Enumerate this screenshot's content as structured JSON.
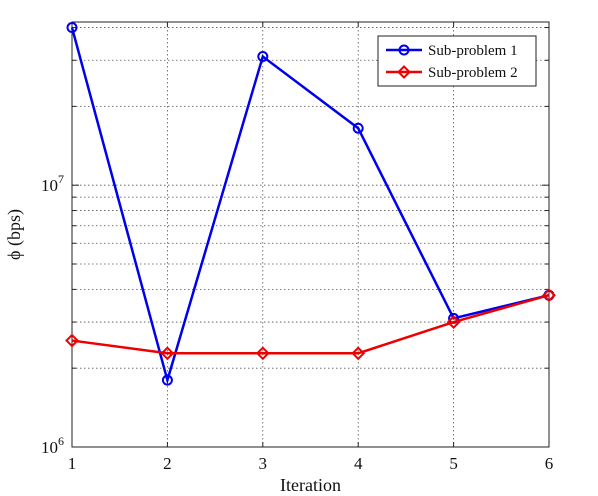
{
  "chart_data": {
    "type": "line",
    "title": "",
    "xlabel": "Iteration",
    "ylabel": "ϕ (bps)",
    "yscale": "log",
    "xlim": [
      1,
      6
    ],
    "ylim": [
      1000000,
      42000000
    ],
    "grid": true,
    "legend_position": "top-right",
    "x": [
      1,
      2,
      3,
      4,
      5,
      6
    ],
    "x_tick_labels": [
      "1",
      "2",
      "3",
      "4",
      "5",
      "6"
    ],
    "y_tick_labels": [
      {
        "value": 1000000,
        "base": "10",
        "exp": "6"
      },
      {
        "value": 10000000,
        "base": "10",
        "exp": "7"
      }
    ],
    "series": [
      {
        "name": "Sub-problem 1",
        "color": "#0000ee",
        "marker": "circle",
        "values": [
          40000000,
          1800000,
          31000000,
          16500000,
          3100000,
          3800000
        ]
      },
      {
        "name": "Sub-problem 2",
        "color": "#ee0000",
        "marker": "diamond",
        "values": [
          2550000,
          2280000,
          2280000,
          2280000,
          3000000,
          3800000
        ]
      }
    ]
  }
}
